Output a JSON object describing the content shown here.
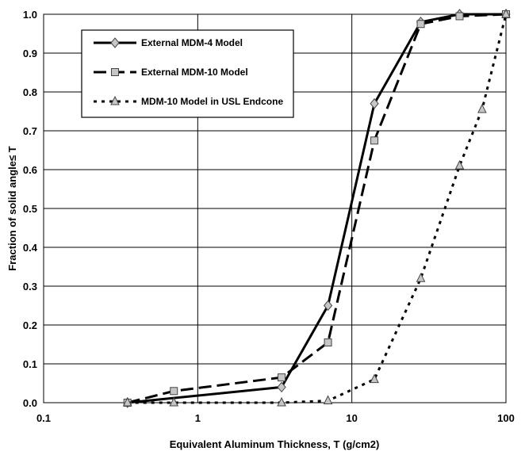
{
  "chart_data": {
    "type": "line",
    "title": "",
    "xlabel": "Equivalent Aluminum Thickness, T (g/cm2)",
    "ylabel": "Fraction of solid angle≤ T",
    "xscale": "log",
    "xlim": [
      0.1,
      100
    ],
    "ylim": [
      0,
      1.0
    ],
    "x_ticks": [
      "0.1",
      "1",
      "10",
      "100"
    ],
    "y_ticks": [
      "0.0",
      "0.1",
      "0.2",
      "0.3",
      "0.4",
      "0.5",
      "0.6",
      "0.7",
      "0.8",
      "0.9",
      "1.0"
    ],
    "grid": true,
    "legend_position": "top-left",
    "series": [
      {
        "name": "External MDM-4 Model",
        "marker": "diamond",
        "line_style": "solid",
        "x": [
          0.35,
          3.5,
          7,
          14,
          28,
          50,
          100
        ],
        "y": [
          0.0,
          0.04,
          0.25,
          0.77,
          0.98,
          1.0,
          1.0
        ]
      },
      {
        "name": "External MDM-10 Model",
        "marker": "square",
        "line_style": "long-dash",
        "x": [
          0.35,
          0.7,
          3.5,
          7,
          14,
          28,
          50,
          100
        ],
        "y": [
          0.0,
          0.03,
          0.065,
          0.155,
          0.675,
          0.975,
          0.995,
          1.0
        ]
      },
      {
        "name": "MDM-10 Model in USL Endcone",
        "marker": "triangle",
        "line_style": "dotted",
        "x": [
          0.35,
          0.7,
          3.5,
          7,
          14,
          28,
          50,
          70,
          100
        ],
        "y": [
          0.0,
          0.0,
          0.0,
          0.005,
          0.06,
          0.32,
          0.61,
          0.755,
          1.0
        ]
      }
    ]
  }
}
